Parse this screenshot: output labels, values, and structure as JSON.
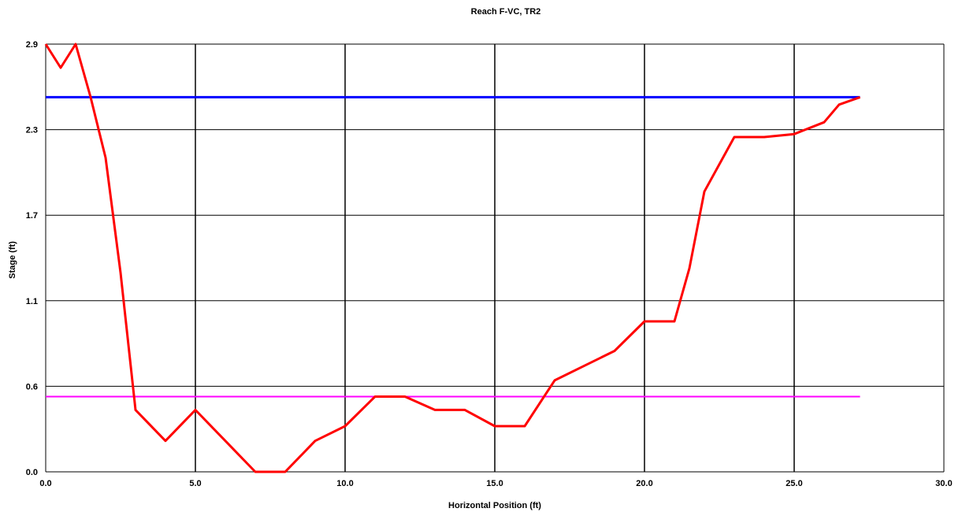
{
  "chart_data": {
    "type": "line",
    "title": "Reach F-VC, TR2",
    "xlabel": "Horizontal Position (ft)",
    "ylabel": "Stage (ft)",
    "xlim": [
      0.0,
      30.0
    ],
    "ylim": [
      0.0,
      2.9
    ],
    "x_ticks": [
      "0.0",
      "5.0",
      "10.0",
      "15.0",
      "20.0",
      "25.0",
      "30.0"
    ],
    "x_tick_values": [
      0,
      5,
      10,
      15,
      20,
      25,
      30
    ],
    "y_ticks": [
      "0.0",
      "0.6",
      "1.1",
      "1.7",
      "2.3",
      "2.9"
    ],
    "y_tick_values": [
      0,
      0.58,
      1.16,
      1.74,
      2.32,
      2.9
    ],
    "grid": true,
    "colors": {
      "profile": "#ff0000",
      "upper_line": "#0000ff",
      "lower_line": "#ff00ff",
      "grid": "#000000"
    },
    "series": [
      {
        "color": "#0000ff",
        "x": [
          0.0,
          27.2
        ],
        "y": [
          2.54,
          2.54
        ]
      },
      {
        "color": "#ff00ff",
        "x": [
          0.0,
          27.2
        ],
        "y": [
          0.51,
          0.51
        ]
      },
      {
        "color": "#ff0000",
        "x": [
          0.0,
          0.5,
          1.0,
          1.5,
          2.0,
          2.5,
          3.0,
          4.0,
          5.0,
          6.0,
          7.0,
          8.0,
          9.0,
          10.0,
          11.0,
          12.0,
          13.0,
          14.0,
          15.0,
          16.0,
          17.0,
          18.0,
          19.0,
          20.0,
          21.0,
          21.5,
          22.0,
          23.0,
          24.0,
          25.0,
          26.0,
          26.5,
          27.2
        ],
        "y": [
          2.9,
          2.74,
          2.9,
          2.54,
          2.13,
          1.35,
          0.42,
          0.21,
          0.42,
          0.21,
          0.0,
          0.0,
          0.21,
          0.31,
          0.51,
          0.51,
          0.42,
          0.42,
          0.31,
          0.31,
          0.62,
          0.72,
          0.82,
          1.02,
          1.02,
          1.38,
          1.9,
          2.27,
          2.27,
          2.29,
          2.37,
          2.49,
          2.54
        ]
      }
    ]
  }
}
